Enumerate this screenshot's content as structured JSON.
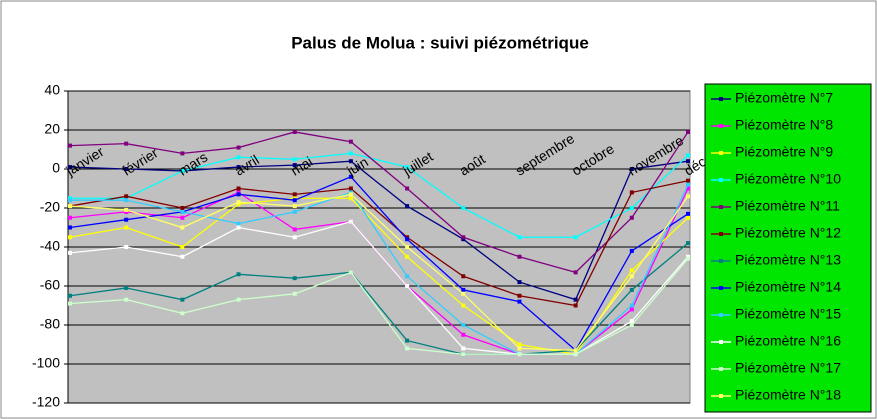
{
  "chart_data": {
    "type": "line",
    "title": "Palus de Molua : suivi piézométrique",
    "categories": [
      "janvier",
      "février",
      "mars",
      "avril",
      "mai",
      "juin",
      "juillet",
      "août",
      "septembre",
      "octobre",
      "novembre",
      "décembre"
    ],
    "ylim": [
      -120,
      40
    ],
    "yticks": [
      -120,
      -100,
      -80,
      -60,
      -40,
      -20,
      0,
      20,
      40
    ],
    "grid": true,
    "legend": "right",
    "series": [
      {
        "name": "Piézomètre N°7",
        "color": "#000080",
        "values": [
          1,
          0,
          -1,
          1,
          2,
          4,
          -19,
          -36,
          -58,
          -67,
          0,
          4
        ]
      },
      {
        "name": "Piézomètre N°8",
        "color": "#ff00ff",
        "values": [
          -25,
          -22,
          -25,
          -12,
          -31,
          -27,
          -60,
          -85,
          -95,
          -95,
          -72,
          -10
        ]
      },
      {
        "name": "Piézomètre N°9",
        "color": "#ffff00",
        "values": [
          -35,
          -30,
          -40,
          -18,
          -15,
          -15,
          -45,
          -70,
          -90,
          -95,
          -52,
          -25
        ]
      },
      {
        "name": "Piézomètre N°10",
        "color": "#00ffff",
        "values": [
          -15,
          -15,
          -1,
          6,
          5,
          8,
          1,
          -20,
          -35,
          -35,
          -20,
          7
        ]
      },
      {
        "name": "Piézomètre N°11",
        "color": "#800080",
        "values": [
          12,
          13,
          8,
          11,
          19,
          14,
          -10,
          -35,
          -45,
          -53,
          -25,
          19
        ]
      },
      {
        "name": "Piézomètre N°12",
        "color": "#800000",
        "values": [
          -19,
          -14,
          -20,
          -10,
          -13,
          -10,
          -35,
          -55,
          -65,
          -70,
          -12,
          -6
        ]
      },
      {
        "name": "Piézomètre N°13",
        "color": "#008080",
        "values": [
          -65,
          -61,
          -67,
          -54,
          -56,
          -53,
          -88,
          -95,
          -95,
          -93,
          -62,
          -38
        ]
      },
      {
        "name": "Piézomètre N°14",
        "color": "#0000ff",
        "values": [
          -30,
          -26,
          -22,
          -13,
          -16,
          -4,
          -36,
          -62,
          -68,
          -93,
          -42,
          -23
        ]
      },
      {
        "name": "Piézomètre N°15",
        "color": "#33ccff",
        "values": [
          -16,
          -16,
          -22,
          -28,
          -22,
          -12,
          -55,
          -80,
          -95,
          -95,
          -70,
          -8
        ]
      },
      {
        "name": "Piézomètre N°16",
        "color": "#ffffff",
        "values": [
          -43,
          -40,
          -45,
          -30,
          -35,
          -27,
          -60,
          -92,
          -95,
          -95,
          -78,
          -45
        ]
      },
      {
        "name": "Piézomètre N°17",
        "color": "#ccffcc",
        "values": [
          -69,
          -67,
          -74,
          -67,
          -64,
          -53,
          -92,
          -95,
          -95,
          -95,
          -80,
          -46
        ]
      },
      {
        "name": "Piézomètre N°18",
        "color": "#ffff66",
        "values": [
          -19,
          -21,
          -30,
          -17,
          -19,
          -13,
          -40,
          -64,
          -92,
          -93,
          -55,
          -14
        ]
      }
    ]
  }
}
